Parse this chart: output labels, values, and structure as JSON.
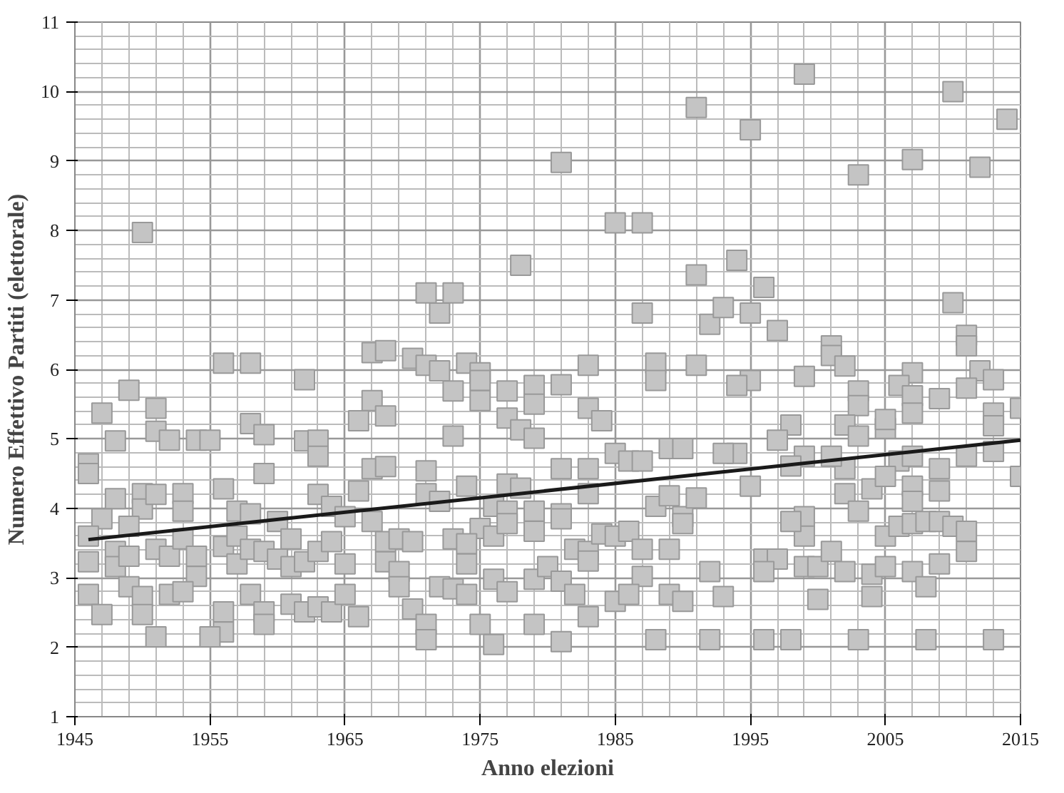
{
  "chart_data": {
    "type": "scatter",
    "xlabel": "Anno elezioni",
    "ylabel": "Numero Effettivo Partiti (elettorale)",
    "xlim": [
      1945,
      2015
    ],
    "ylim": [
      1,
      11
    ],
    "xticks": [
      1945,
      1955,
      1965,
      1975,
      1985,
      1995,
      2005,
      2015
    ],
    "yticks": [
      1,
      2,
      3,
      4,
      5,
      6,
      7,
      8,
      9,
      10,
      11
    ],
    "grid": true,
    "marker": "square",
    "series": [
      {
        "color": "#c4c4c4",
        "x": [
          1950,
          1956,
          1958,
          1962,
          1967,
          1949,
          1981,
          1985,
          1987,
          1978,
          1971,
          1973,
          1972,
          1987,
          1991,
          1991,
          1968,
          1970,
          1971,
          1974,
          1975,
          1983,
          1988,
          1991,
          1992,
          1999,
          2010,
          2014,
          1995,
          2003,
          2007,
          2012,
          1994,
          1996,
          1993,
          1995,
          1997,
          2001,
          2001,
          2002,
          2010,
          2011,
          2011,
          1999,
          2007,
          2012,
          2013,
          1947,
          1951,
          1958,
          1959,
          1948,
          1951,
          1952,
          1954,
          1955,
          1962,
          1963,
          1963,
          1946,
          1946,
          1959,
          1966,
          1967,
          1968,
          1967,
          1968,
          1948,
          1950,
          1950,
          1951,
          1953,
          1953,
          1956,
          1963,
          1966,
          1947,
          1946,
          1949,
          1957,
          1958,
          1960,
          1964,
          1965,
          1967,
          1968,
          1946,
          1948,
          1948,
          1949,
          1951,
          1952,
          1953,
          1954,
          1954,
          1956,
          1957,
          1957,
          1958,
          1959,
          1960,
          1961,
          1961,
          1962,
          1963,
          1964,
          1965,
          1968,
          1946,
          1947,
          1949,
          1950,
          1950,
          1951,
          1952,
          1953,
          1956,
          1956,
          1955,
          1958,
          1959,
          1959,
          1961,
          1962,
          1963,
          1964,
          1965,
          1966,
          1972,
          1973,
          1975,
          1975,
          1977,
          1979,
          1979,
          1981,
          1983,
          1984,
          1988,
          1973,
          1977,
          1978,
          1979,
          1971,
          1974,
          1977,
          1978,
          1981,
          1983,
          1985,
          1986,
          1987,
          1989,
          1990,
          1971,
          1972,
          1976,
          1977,
          1979,
          1981,
          1983,
          1988,
          1989,
          1990,
          1991,
          1975,
          1976,
          1977,
          1979,
          1981,
          1969,
          1970,
          1973,
          1974,
          1974,
          1982,
          1983,
          1983,
          1984,
          1985,
          1986,
          1987,
          1987,
          1989,
          1990,
          1969,
          1969,
          1972,
          1973,
          1974,
          1976,
          1977,
          1979,
          1980,
          1981,
          1982,
          1985,
          1986,
          1989,
          1990,
          1970,
          1971,
          1971,
          1975,
          1976,
          1979,
          1981,
          1983,
          1988,
          1995,
          1994,
          2003,
          2003,
          2006,
          2007,
          2007,
          2009,
          2011,
          2015,
          2013,
          2013,
          2002,
          2003,
          2005,
          2005,
          1998,
          1997,
          1999,
          1998,
          1994,
          1993,
          2002,
          2001,
          2006,
          2007,
          2009,
          2011,
          2013,
          2015,
          1995,
          2002,
          2004,
          2005,
          2007,
          2007,
          2009,
          2003,
          1999,
          1999,
          1998,
          2005,
          2006,
          2007,
          2008,
          2009,
          2010,
          2011,
          2011,
          1996,
          1997,
          1996,
          1999,
          2000,
          2001,
          2002,
          2004,
          2005,
          2007,
          2009,
          2008,
          2000,
          2004,
          1993,
          1992,
          1992,
          1996,
          1998,
          2003,
          2008,
          2013
        ],
        "values": [
          7.97,
          6.09,
          6.09,
          5.85,
          6.24,
          5.7,
          8.98,
          8.11,
          8.11,
          7.5,
          7.1,
          7.1,
          6.81,
          6.81,
          9.77,
          7.36,
          6.27,
          6.16,
          6.06,
          6.09,
          5.95,
          6.06,
          6.09,
          6.06,
          6.65,
          10.25,
          10.0,
          9.6,
          9.45,
          8.8,
          9.02,
          8.91,
          7.57,
          7.18,
          6.89,
          6.81,
          6.56,
          6.34,
          6.2,
          6.05,
          6.96,
          6.49,
          6.34,
          5.9,
          5.95,
          5.98,
          5.85,
          5.37,
          5.44,
          5.22,
          5.06,
          4.97,
          5.11,
          4.98,
          4.98,
          4.98,
          4.97,
          4.98,
          4.75,
          4.64,
          4.5,
          4.5,
          5.26,
          5.55,
          5.33,
          4.57,
          4.6,
          4.14,
          4.21,
          3.99,
          4.2,
          4.21,
          3.96,
          4.28,
          4.2,
          4.25,
          3.85,
          3.6,
          3.74,
          3.96,
          3.92,
          3.81,
          4.03,
          3.88,
          3.81,
          3.52,
          3.23,
          3.38,
          3.16,
          3.31,
          3.41,
          3.31,
          3.56,
          3.31,
          3.02,
          3.45,
          3.6,
          3.2,
          3.41,
          3.38,
          3.27,
          3.56,
          3.16,
          3.23,
          3.38,
          3.52,
          3.2,
          3.23,
          2.76,
          2.47,
          2.87,
          2.73,
          2.47,
          2.15,
          2.76,
          2.8,
          2.51,
          2.22,
          2.15,
          2.76,
          2.51,
          2.33,
          2.62,
          2.51,
          2.58,
          2.51,
          2.76,
          2.44,
          5.98,
          5.69,
          5.84,
          5.55,
          5.69,
          5.77,
          5.5,
          5.78,
          5.44,
          5.26,
          5.84,
          5.04,
          5.3,
          5.13,
          5.01,
          4.54,
          4.32,
          4.35,
          4.29,
          4.57,
          4.57,
          4.79,
          4.68,
          4.68,
          4.86,
          4.86,
          4.21,
          4.1,
          4.03,
          3.96,
          3.96,
          3.92,
          4.21,
          4.03,
          4.18,
          3.88,
          4.15,
          3.71,
          3.6,
          3.78,
          3.67,
          3.85,
          3.56,
          3.52,
          3.56,
          3.49,
          3.2,
          3.41,
          3.38,
          3.24,
          3.63,
          3.6,
          3.67,
          3.41,
          3.02,
          3.41,
          3.78,
          3.09,
          2.87,
          2.87,
          2.84,
          2.76,
          2.98,
          2.8,
          2.98,
          3.16,
          2.95,
          2.76,
          2.66,
          2.76,
          2.76,
          2.66,
          2.55,
          2.33,
          2.11,
          2.33,
          2.04,
          2.33,
          2.08,
          2.44,
          2.11,
          5.84,
          5.77,
          5.69,
          5.48,
          5.77,
          5.62,
          5.37,
          5.58,
          5.73,
          5.44,
          5.37,
          5.19,
          5.2,
          5.04,
          5.15,
          5.28,
          5.2,
          4.98,
          4.75,
          4.61,
          4.79,
          4.79,
          4.57,
          4.75,
          4.68,
          4.75,
          4.57,
          4.75,
          4.82,
          4.46,
          4.32,
          4.21,
          4.28,
          4.46,
          4.32,
          4.1,
          4.25,
          3.96,
          3.88,
          3.6,
          3.81,
          3.6,
          3.74,
          3.78,
          3.81,
          3.81,
          3.74,
          3.67,
          3.38,
          3.27,
          3.27,
          3.09,
          3.16,
          3.16,
          3.38,
          3.09,
          3.05,
          3.16,
          3.09,
          3.2,
          2.87,
          2.69,
          2.73,
          2.73,
          3.09,
          2.11,
          2.11,
          2.11,
          2.11,
          2.11,
          2.11
        ]
      },
      {
        "type": "line",
        "color": "#1a1a1a",
        "marker": "none",
        "x": [
          1946,
          2015
        ],
        "values": [
          3.55,
          4.98
        ]
      }
    ]
  }
}
